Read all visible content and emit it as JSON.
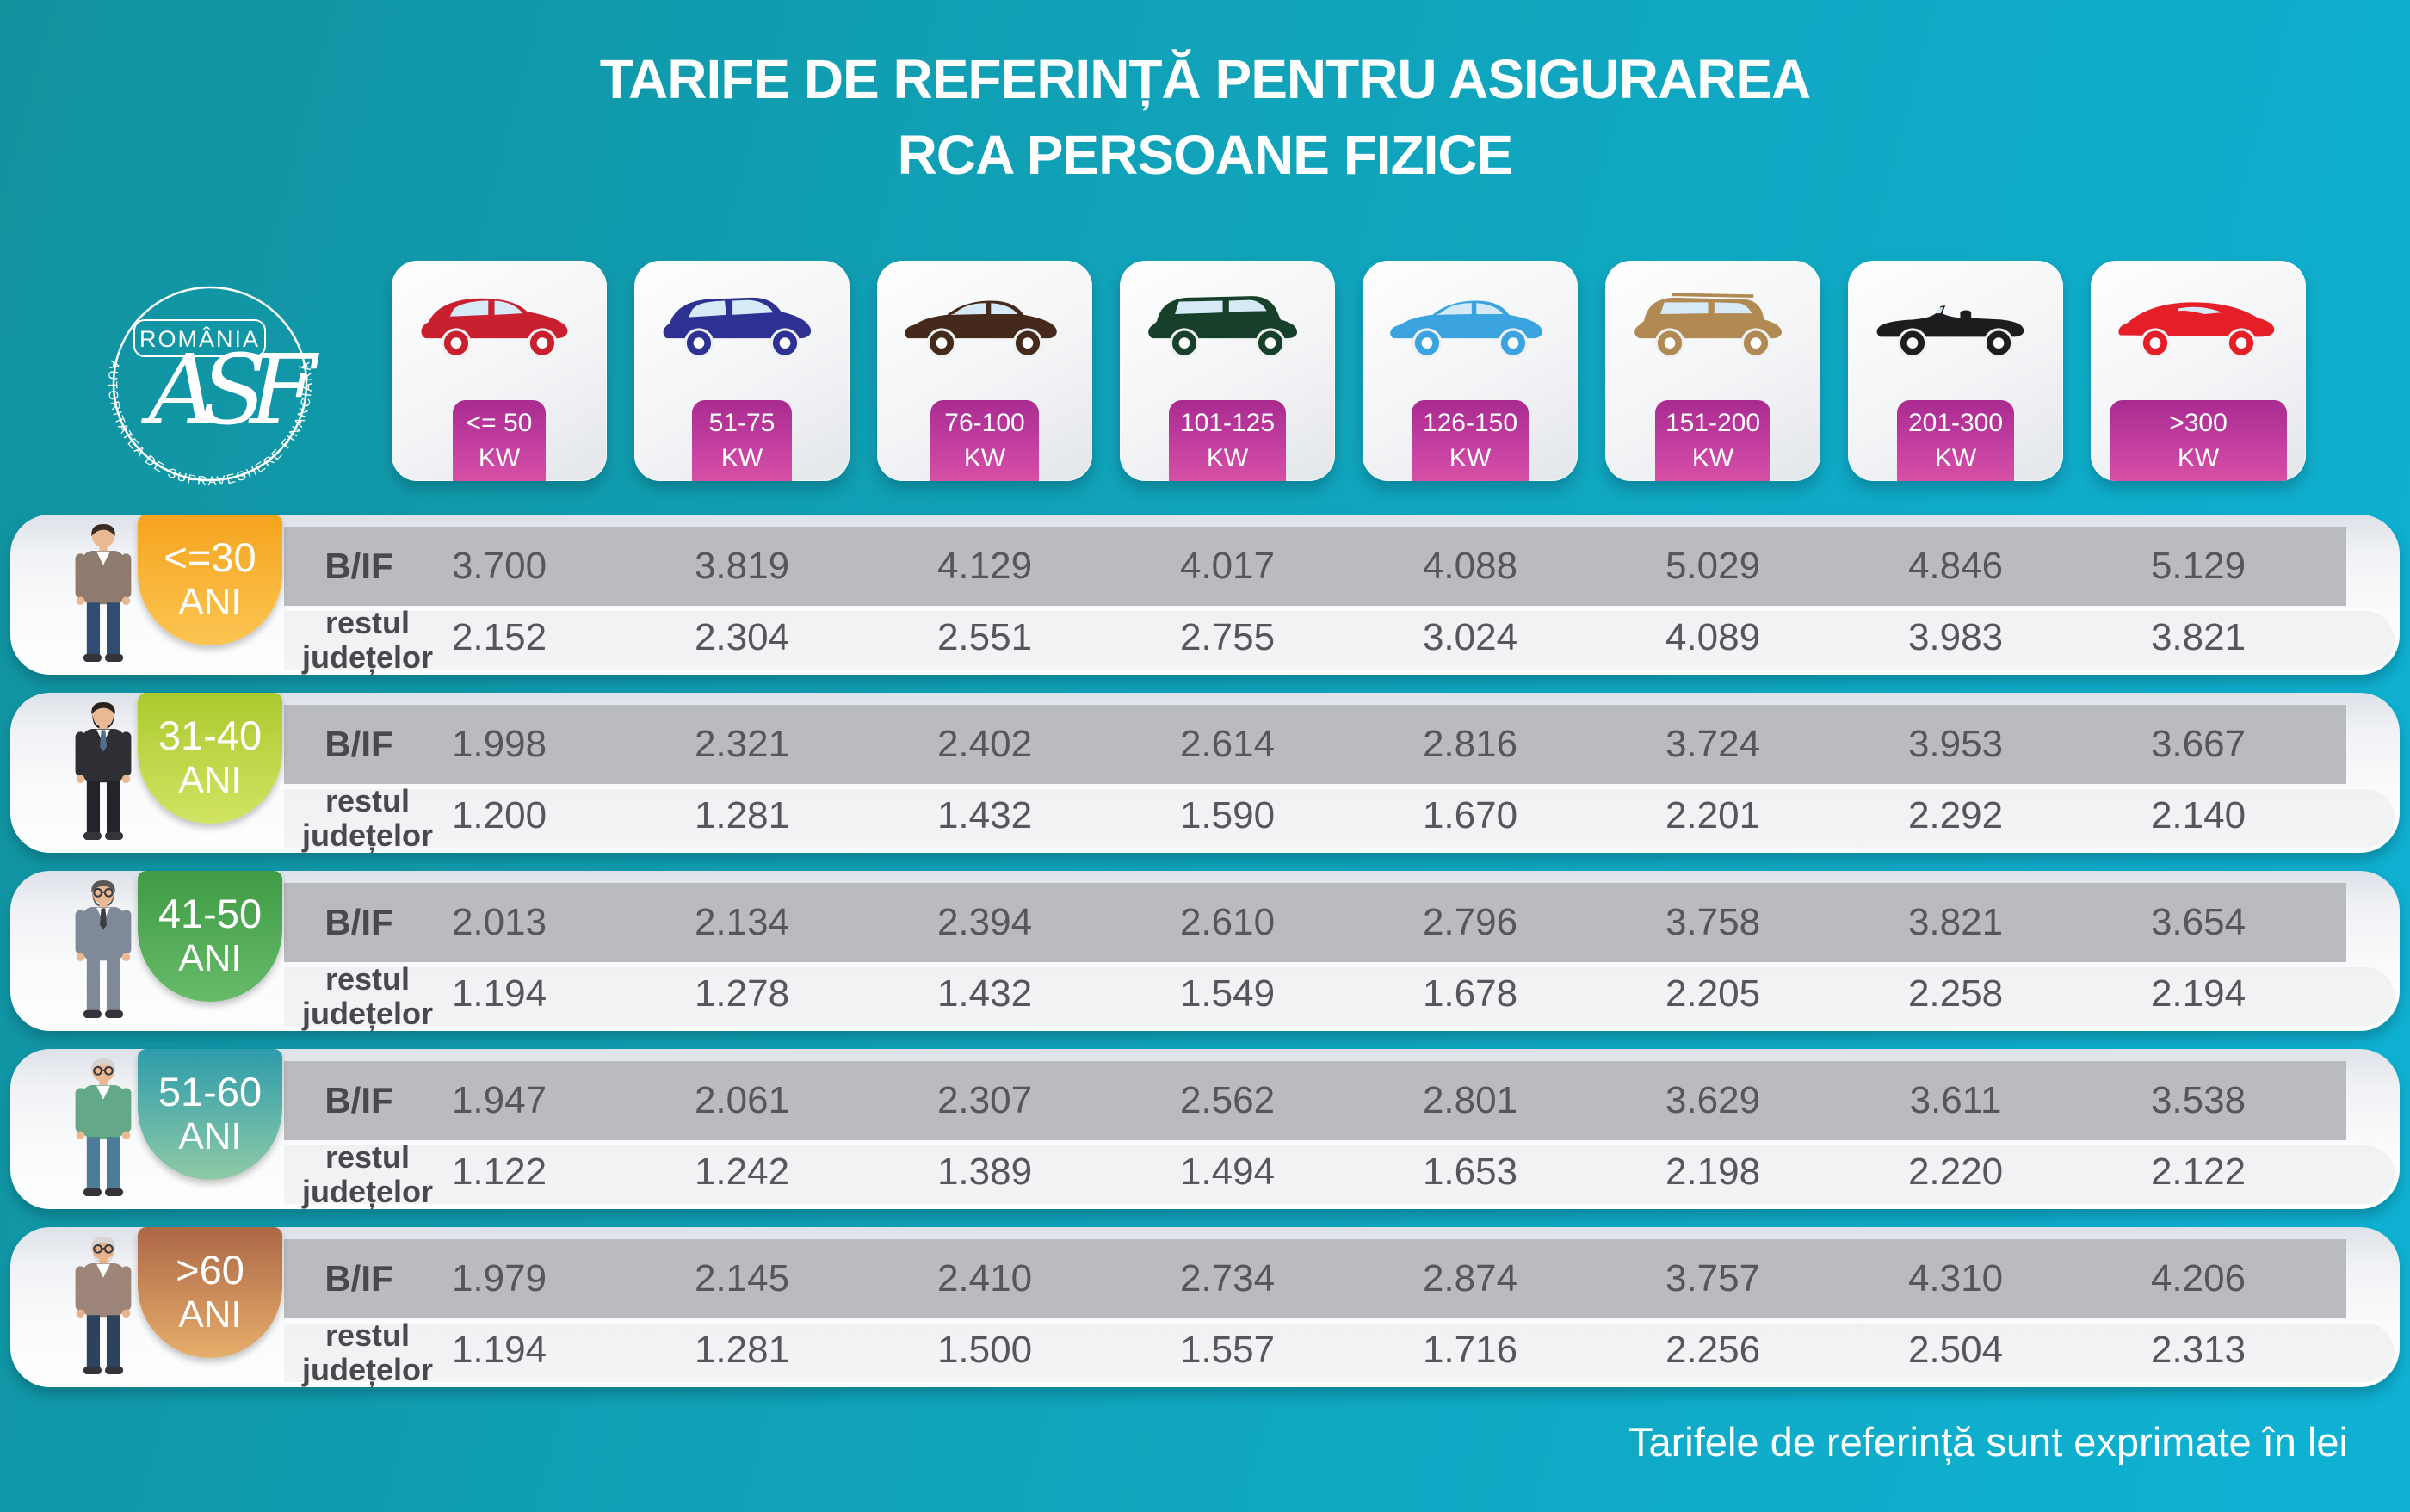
{
  "title": {
    "line1": "TARIFE DE REFERINȚĂ PENTRU ASIGURAREA",
    "line2": "RCA PERSOANE FIZICE"
  },
  "logo": {
    "country": "ROMÂNIA",
    "monogram": "ASF",
    "ring_text": "AUTORITATEA DE SUPRAVEGHERE FINANCIARĂ"
  },
  "footer": {
    "note": "Tarifele de referință sunt exprimate în lei"
  },
  "row_labels": {
    "bif": "B/IF",
    "rest_line1": "restul",
    "rest_line2": "județelor"
  },
  "palette": {
    "bg1": "#11929f",
    "bg2": "#0fb2d4",
    "kwb1": "#a92b90",
    "kwb2": "#d650a6",
    "band": "#babbbe",
    "valc": "#56575b"
  },
  "columns": [
    {
      "kw": "<= 50",
      "unit": "KW",
      "badge_width": 108,
      "car_type": "city",
      "car_color": "#c8202f",
      "icon": "red-city-car-icon"
    },
    {
      "kw": "51-75",
      "unit": "KW",
      "badge_width": 116,
      "car_type": "hatchback",
      "car_color": "#2d3192",
      "icon": "blue-hatchback-icon"
    },
    {
      "kw": "76-100",
      "unit": "KW",
      "badge_width": 126,
      "car_type": "sedan",
      "car_color": "#452a1b",
      "icon": "brown-sedan-icon"
    },
    {
      "kw": "101-125",
      "unit": "KW",
      "badge_width": 136,
      "car_type": "minivan",
      "car_color": "#17402a",
      "icon": "green-minivan-icon"
    },
    {
      "kw": "126-150",
      "unit": "KW",
      "badge_width": 136,
      "car_type": "sedan",
      "car_color": "#3ba3df",
      "icon": "lightblue-sedan-icon"
    },
    {
      "kw": "151-200",
      "unit": "KW",
      "badge_width": 134,
      "car_type": "suv",
      "car_color": "#b08a52",
      "icon": "tan-suv-icon"
    },
    {
      "kw": "201-300",
      "unit": "KW",
      "badge_width": 136,
      "car_type": "convertible",
      "car_color": "#1d1d1f",
      "icon": "black-convertible-icon"
    },
    {
      "kw": ">300",
      "unit": "KW",
      "badge_width": 206,
      "car_type": "sports",
      "car_color": "#e61e28",
      "icon": "red-sports-car-icon"
    }
  ],
  "age_groups": [
    {
      "label_line1": "<=30",
      "label_line2": "ANI",
      "badge_from": "#f6a41e",
      "badge_to": "#fcc553",
      "person": {
        "icon": "young-man-icon",
        "skin": "#eab892",
        "hair": "#3a2b21",
        "top": "#8f7c6e",
        "shirt": "#ffffff",
        "pants": "#2f4d72",
        "beard": false,
        "glasses": false,
        "tie": null
      },
      "bif": [
        "3.700",
        "3.819",
        "4.129",
        "4.017",
        "4.088",
        "5.029",
        "4.846",
        "5.129"
      ],
      "rest": [
        "2.152",
        "2.304",
        "2.551",
        "2.755",
        "3.024",
        "4.089",
        "3.983",
        "3.821"
      ]
    },
    {
      "label_line1": "31-40",
      "label_line2": "ANI",
      "badge_from": "#abc92e",
      "badge_to": "#d2e464",
      "person": {
        "icon": "adult-man-icon",
        "skin": "#eab892",
        "hair": "#2b211c",
        "top": "#2e2e34",
        "shirt": "#ffffff",
        "pants": "#232329",
        "beard": true,
        "glasses": false,
        "tie": "#52708e"
      },
      "bif": [
        "1.998",
        "2.321",
        "2.402",
        "2.614",
        "2.816",
        "3.724",
        "3.953",
        "3.667"
      ],
      "rest": [
        "1.200",
        "1.281",
        "1.432",
        "1.590",
        "1.670",
        "2.201",
        "2.292",
        "2.140"
      ]
    },
    {
      "label_line1": "41-50",
      "label_line2": "ANI",
      "badge_from": "#3f9b44",
      "badge_to": "#67bb6a",
      "person": {
        "icon": "middle-aged-man-icon",
        "skin": "#eab892",
        "hair": "#585858",
        "top": "#808999",
        "shirt": "#ffffff",
        "pants": "#808999",
        "beard": true,
        "glasses": true,
        "tie": "#3a3d44"
      },
      "bif": [
        "2.013",
        "2.134",
        "2.394",
        "2.610",
        "2.796",
        "3.758",
        "3.821",
        "3.654"
      ],
      "rest": [
        "1.194",
        "1.278",
        "1.432",
        "1.549",
        "1.678",
        "2.205",
        "2.258",
        "2.194"
      ]
    },
    {
      "label_line1": "51-60",
      "label_line2": "ANI",
      "badge_from": "#2d9cab",
      "badge_to": "#8fcaa6",
      "person": {
        "icon": "senior-man-icon",
        "skin": "#eab892",
        "hair": "#d5d3cf",
        "top": "#63a988",
        "shirt": "#ffffff",
        "pants": "#4c7c99",
        "beard": false,
        "glasses": true,
        "tie": null
      },
      "bif": [
        "1.947",
        "2.061",
        "2.307",
        "2.562",
        "2.801",
        "3.629",
        "3.611",
        "3.538"
      ],
      "rest": [
        "1.122",
        "1.242",
        "1.389",
        "1.494",
        "1.653",
        "2.198",
        "2.220",
        "2.122"
      ]
    },
    {
      "label_line1": ">60",
      "label_line2": "ANI",
      "badge_from": "#ad6746",
      "badge_to": "#e6ae6b",
      "person": {
        "icon": "elderly-man-icon",
        "skin": "#e6b28c",
        "hair": "#d9d6d2",
        "top": "#9d8679",
        "shirt": "#ffffff",
        "pants": "#2b435f",
        "beard": true,
        "glasses": true,
        "tie": null
      },
      "bif": [
        "1.979",
        "2.145",
        "2.410",
        "2.734",
        "2.874",
        "3.757",
        "4.310",
        "4.206"
      ],
      "rest": [
        "1.194",
        "1.281",
        "1.500",
        "1.557",
        "1.716",
        "2.256",
        "2.504",
        "2.313"
      ]
    }
  ],
  "chart_data": {
    "type": "table",
    "title": "TARIFE DE REFERINȚĂ PENTRU ASIGURAREA RCA PERSOANE FIZICE",
    "note": "Tarifele de referință sunt exprimate în lei",
    "columns": [
      "<= 50 KW",
      "51-75 KW",
      "76-100 KW",
      "101-125 KW",
      "126-150 KW",
      "151-200 KW",
      "201-300 KW",
      ">300 KW"
    ],
    "rows": [
      {
        "age_group": "<=30 ANI",
        "region": "B/IF",
        "values": [
          "3.700",
          "3.819",
          "4.129",
          "4.017",
          "4.088",
          "5.029",
          "4.846",
          "5.129"
        ]
      },
      {
        "age_group": "<=30 ANI",
        "region": "restul județelor",
        "values": [
          "2.152",
          "2.304",
          "2.551",
          "2.755",
          "3.024",
          "4.089",
          "3.983",
          "3.821"
        ]
      },
      {
        "age_group": "31-40 ANI",
        "region": "B/IF",
        "values": [
          "1.998",
          "2.321",
          "2.402",
          "2.614",
          "2.816",
          "3.724",
          "3.953",
          "3.667"
        ]
      },
      {
        "age_group": "31-40 ANI",
        "region": "restul județelor",
        "values": [
          "1.200",
          "1.281",
          "1.432",
          "1.590",
          "1.670",
          "2.201",
          "2.292",
          "2.140"
        ]
      },
      {
        "age_group": "41-50 ANI",
        "region": "B/IF",
        "values": [
          "2.013",
          "2.134",
          "2.394",
          "2.610",
          "2.796",
          "3.758",
          "3.821",
          "3.654"
        ]
      },
      {
        "age_group": "41-50 ANI",
        "region": "restul județelor",
        "values": [
          "1.194",
          "1.278",
          "1.432",
          "1.549",
          "1.678",
          "2.205",
          "2.258",
          "2.194"
        ]
      },
      {
        "age_group": "51-60 ANI",
        "region": "B/IF",
        "values": [
          "1.947",
          "2.061",
          "2.307",
          "2.562",
          "2.801",
          "3.629",
          "3.611",
          "3.538"
        ]
      },
      {
        "age_group": "51-60 ANI",
        "region": "restul județelor",
        "values": [
          "1.122",
          "1.242",
          "1.389",
          "1.494",
          "1.653",
          "2.198",
          "2.220",
          "2.122"
        ]
      },
      {
        "age_group": ">60 ANI",
        "region": "B/IF",
        "values": [
          "1.979",
          "2.145",
          "2.410",
          "2.734",
          "2.874",
          "3.757",
          "4.310",
          "4.206"
        ]
      },
      {
        "age_group": ">60 ANI",
        "region": "restul județelor",
        "values": [
          "1.194",
          "1.281",
          "1.500",
          "1.557",
          "1.716",
          "2.256",
          "2.504",
          "2.313"
        ]
      }
    ]
  }
}
